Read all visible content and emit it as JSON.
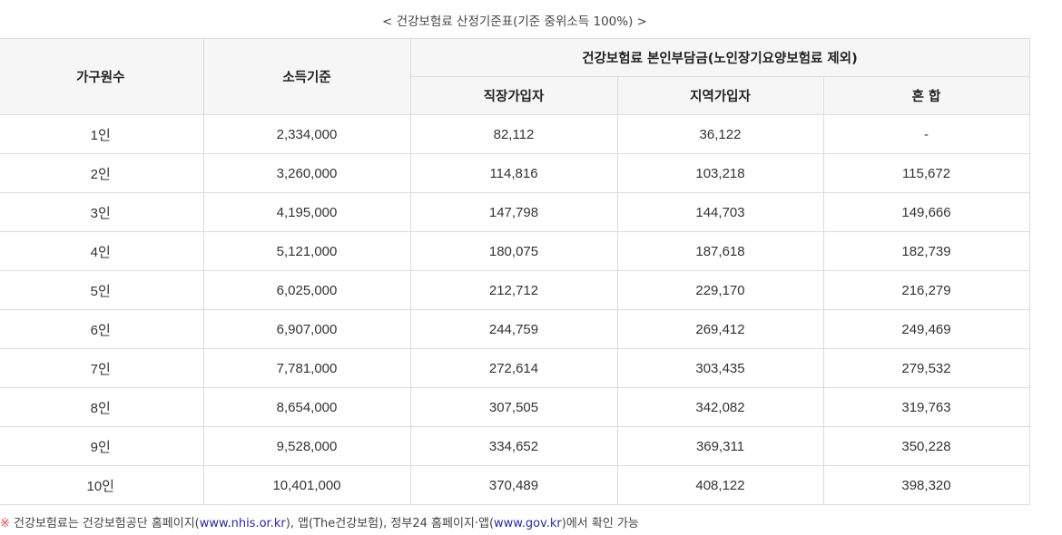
{
  "caption": "< 건강보험료 산정기준표(기준 중위소득 100%) >",
  "table": {
    "col_household": "가구원수",
    "col_income": "소득기준",
    "col_group": "건강보험료 본인부담금(노인장기요양보험료 제외)",
    "col_employee": "직장가입자",
    "col_regional": "지역가입자",
    "col_mixed": "혼 합",
    "rows": [
      {
        "household": "1인",
        "income": "2,334,000",
        "employee": "82,112",
        "regional": "36,122",
        "mixed": "-"
      },
      {
        "household": "2인",
        "income": "3,260,000",
        "employee": "114,816",
        "regional": "103,218",
        "mixed": "115,672"
      },
      {
        "household": "3인",
        "income": "4,195,000",
        "employee": "147,798",
        "regional": "144,703",
        "mixed": "149,666"
      },
      {
        "household": "4인",
        "income": "5,121,000",
        "employee": "180,075",
        "regional": "187,618",
        "mixed": "182,739"
      },
      {
        "household": "5인",
        "income": "6,025,000",
        "employee": "212,712",
        "regional": "229,170",
        "mixed": "216,279"
      },
      {
        "household": "6인",
        "income": "6,907,000",
        "employee": "244,759",
        "regional": "269,412",
        "mixed": "249,469"
      },
      {
        "household": "7인",
        "income": "7,781,000",
        "employee": "272,614",
        "regional": "303,435",
        "mixed": "279,532"
      },
      {
        "household": "8인",
        "income": "8,654,000",
        "employee": "307,505",
        "regional": "342,082",
        "mixed": "319,763"
      },
      {
        "household": "9인",
        "income": "9,528,000",
        "employee": "334,652",
        "regional": "369,311",
        "mixed": "350,228"
      },
      {
        "household": "10인",
        "income": "10,401,000",
        "employee": "370,489",
        "regional": "408,122",
        "mixed": "398,320"
      }
    ]
  },
  "note": {
    "mark": "※",
    "text1": " 건강보험료는 건강보험공단 홈페이지(",
    "link1": "www.nhis.or.kr",
    "text2": "), 앱(The건강보험), 정부24 홈페이지·앱(",
    "link2": "www.gov.kr",
    "text3": ")에서 확인 가능"
  }
}
